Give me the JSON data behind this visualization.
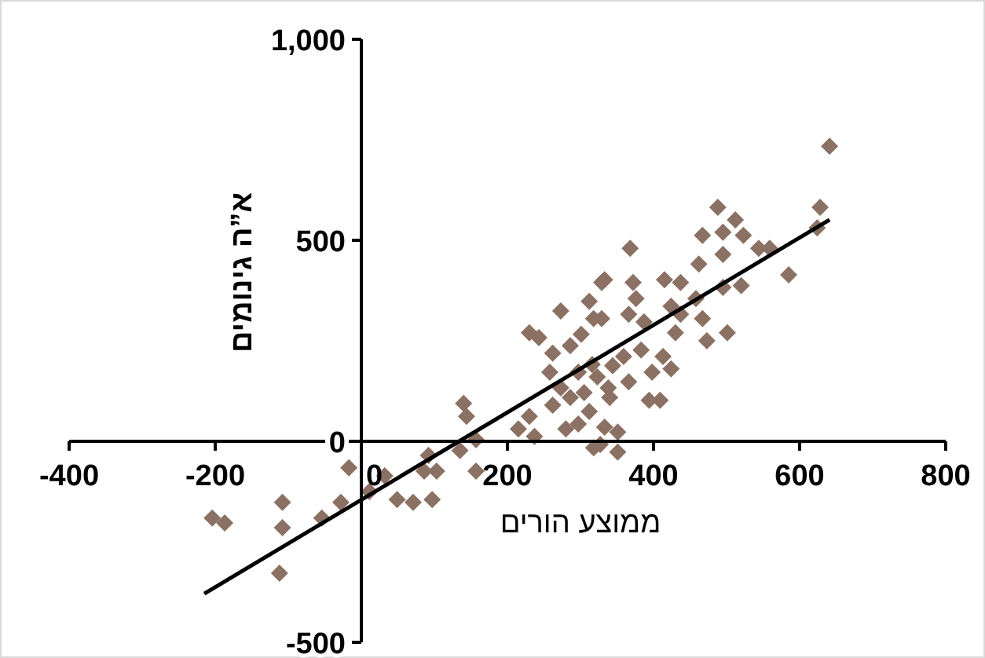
{
  "chart_data": {
    "type": "scatter",
    "xlabel": "ממוצע הורים",
    "ylabel": "א”ה גינומים",
    "xlim": [
      -400,
      800
    ],
    "ylim": [
      -500,
      1000
    ],
    "xticks": [
      -400,
      -200,
      0,
      200,
      400,
      600,
      800
    ],
    "yticks": [
      -500,
      0,
      500,
      {
        "value": 1000,
        "label": "1,000"
      }
    ],
    "grid": false,
    "marker": "diamond",
    "series": [
      {
        "type": "scatter",
        "color": "#8b7163",
        "x": [
          -204,
          -187,
          -112,
          -108,
          -108,
          -54,
          -28,
          -17,
          11,
          32,
          49,
          71,
          86,
          92,
          97,
          103,
          135,
          140,
          144,
          157,
          157,
          215,
          230,
          230,
          243,
          258,
          262,
          273,
          273,
          280,
          286,
          286,
          297,
          301,
          312,
          312,
          316,
          318,
          318,
          329,
          641,
          488,
          512,
          628,
          624,
          467,
          495,
          523,
          495,
          544,
          559,
          368,
          462,
          585,
          333,
          372,
          415,
          437,
          376,
          520,
          495,
          458,
          424,
          366,
          387,
          329,
          437,
          467,
          430,
          501,
          473,
          413,
          383,
          359,
          344,
          398,
          424,
          366,
          338,
          394,
          409,
          323,
          340,
          351,
          333,
          351,
          327,
          305,
          297,
          262,
          237
        ],
        "values": [
          -191,
          -203,
          -328,
          -152,
          -215,
          -191,
          -152,
          -66,
          -125,
          -86,
          -145,
          -152,
          -74,
          -35,
          -145,
          -74,
          -23,
          94,
          62,
          -74,
          4,
          31,
          62,
          270,
          258,
          172,
          90,
          324,
          133,
          31,
          109,
          238,
          172,
          266,
          348,
          74,
          191,
          305,
          -16,
          395,
          734,
          582,
          551,
          582,
          531,
          512,
          520,
          512,
          465,
          480,
          480,
          480,
          441,
          414,
          402,
          395,
          402,
          395,
          355,
          387,
          383,
          355,
          336,
          316,
          297,
          305,
          316,
          305,
          270,
          270,
          250,
          211,
          227,
          211,
          188,
          172,
          180,
          148,
          133,
          102,
          102,
          160,
          109,
          23,
          35,
          -27,
          -8,
          121,
          43,
          219,
          12
        ]
      },
      {
        "type": "line",
        "color": "#000000",
        "marker": "none",
        "x": [
          -215,
          641
        ],
        "values": [
          -379,
          551
        ]
      }
    ]
  }
}
